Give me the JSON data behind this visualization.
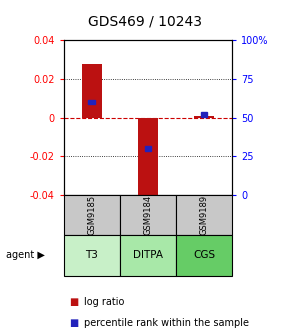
{
  "title": "GDS469 / 10243",
  "samples": [
    "GSM9185",
    "GSM9184",
    "GSM9189"
  ],
  "agents": [
    "T3",
    "DITPA",
    "CGS"
  ],
  "agent_colors": [
    "#c8f0c8",
    "#a8e8a8",
    "#66cc66"
  ],
  "log_ratios": [
    0.028,
    -0.044,
    0.001
  ],
  "percentile_ranks": [
    0.6,
    0.3,
    0.52
  ],
  "ylim_left": [
    -0.04,
    0.04
  ],
  "ylim_right": [
    0,
    1.0
  ],
  "bar_color": "#bb1111",
  "blue_color": "#2222bb",
  "zero_line_color": "#cc0000",
  "sample_box_color": "#c8c8c8",
  "title_fontsize": 10,
  "tick_fontsize": 7,
  "legend_fontsize": 7
}
